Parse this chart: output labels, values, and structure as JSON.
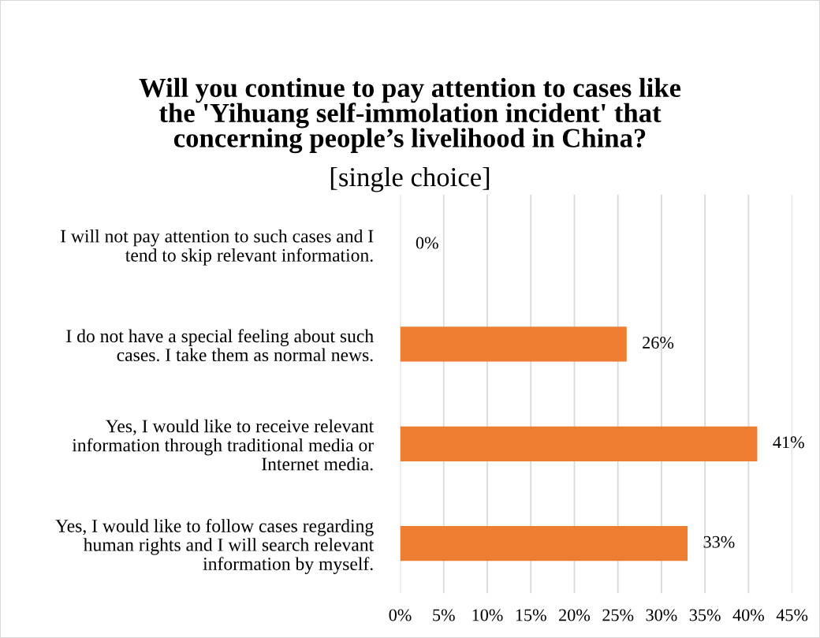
{
  "chart_data": {
    "type": "bar",
    "orientation": "horizontal",
    "title": "Will you continue to pay attention to cases like\nthe 'Yihuang self-immolation incident' that\nconcerning people’s livelihood in China?",
    "subtitle": "[single choice]",
    "categories": [
      "I will not pay attention to such cases and I\ntend to skip relevant information.",
      "I do not have a special feeling about such\ncases. I take them as normal news.",
      "Yes, I would like to receive relevant\ninformation through traditional media or\nInternet media.",
      "Yes, I would like to follow cases regarding\nhuman rights and I will search relevant\ninformation by myself."
    ],
    "values": [
      0,
      26,
      41,
      33
    ],
    "value_labels": [
      "0%",
      "26%",
      "41%",
      "33%"
    ],
    "color": "#ed7d31",
    "xlim": [
      0,
      45
    ],
    "xticks": [
      {
        "value": 0,
        "label": "0%"
      },
      {
        "value": 5,
        "label": "5%"
      },
      {
        "value": 10,
        "label": "10%"
      },
      {
        "value": 15,
        "label": "15%"
      },
      {
        "value": 20,
        "label": "20%"
      },
      {
        "value": 25,
        "label": "25%"
      },
      {
        "value": 30,
        "label": "30%"
      },
      {
        "value": 35,
        "label": "35%"
      },
      {
        "value": 40,
        "label": "40%"
      },
      {
        "value": 45,
        "label": "45%"
      }
    ],
    "grid": "x"
  }
}
